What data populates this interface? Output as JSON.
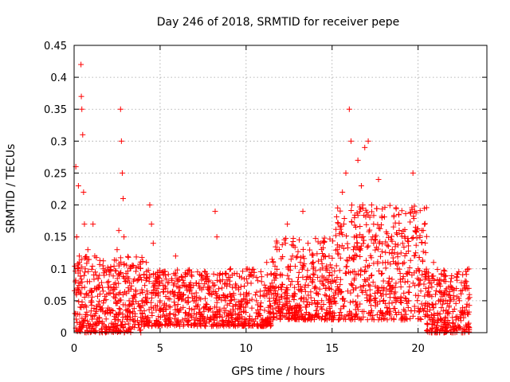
{
  "chart_data": {
    "type": "scatter",
    "title": "Day 246 of 2018, SRMTID for receiver pepe",
    "xlabel": "GPS time / hours",
    "ylabel": "SRMTID / TECUs",
    "xlim": [
      0,
      24
    ],
    "ylim": [
      0,
      0.45
    ],
    "xticks": [
      0,
      5,
      10,
      15,
      20
    ],
    "xtick_labels": [
      "0",
      "5",
      "10",
      "15",
      "20"
    ],
    "yticks": [
      0,
      0.05,
      0.1,
      0.15,
      0.2,
      0.25,
      0.3,
      0.35,
      0.4,
      0.45
    ],
    "ytick_labels": [
      "0",
      "0.05",
      "0.1",
      "0.15",
      "0.2",
      "0.25",
      "0.3",
      "0.35",
      "0.4",
      "0.45"
    ],
    "grid": true,
    "marker": "+",
    "series": [
      {
        "name": "SRMTID",
        "color": "#ff0000",
        "points": [
          [
            0.05,
            0.03
          ],
          [
            0.1,
            0.26
          ],
          [
            0.15,
            0.15
          ],
          [
            0.2,
            0.07
          ],
          [
            0.25,
            0.23
          ],
          [
            0.3,
            0.12
          ],
          [
            0.35,
            0.04
          ],
          [
            0.4,
            0.42
          ],
          [
            0.42,
            0.37
          ],
          [
            0.45,
            0.35
          ],
          [
            0.5,
            0.31
          ],
          [
            0.55,
            0.22
          ],
          [
            0.6,
            0.17
          ],
          [
            0.65,
            0.1
          ],
          [
            0.7,
            0.06
          ],
          [
            0.8,
            0.13
          ],
          [
            0.9,
            0.08
          ],
          [
            1.0,
            0.05
          ],
          [
            1.1,
            0.17
          ],
          [
            1.2,
            0.12
          ],
          [
            1.3,
            0.09
          ],
          [
            1.4,
            0.07
          ],
          [
            1.5,
            0.04
          ],
          [
            1.7,
            0.1
          ],
          [
            1.9,
            0.06
          ],
          [
            2.1,
            0.03
          ],
          [
            2.3,
            0.07
          ],
          [
            2.5,
            0.13
          ],
          [
            2.6,
            0.16
          ],
          [
            2.7,
            0.35
          ],
          [
            2.75,
            0.3
          ],
          [
            2.8,
            0.25
          ],
          [
            2.85,
            0.21
          ],
          [
            2.9,
            0.15
          ],
          [
            3.0,
            0.08
          ],
          [
            3.2,
            0.05
          ],
          [
            3.4,
            0.03
          ],
          [
            3.6,
            0.06
          ],
          [
            3.8,
            0.09
          ],
          [
            4.0,
            0.05
          ],
          [
            4.2,
            0.11
          ],
          [
            4.4,
            0.2
          ],
          [
            4.5,
            0.17
          ],
          [
            4.6,
            0.14
          ],
          [
            4.8,
            0.08
          ],
          [
            5.0,
            0.05
          ],
          [
            5.3,
            0.09
          ],
          [
            5.6,
            0.04
          ],
          [
            5.9,
            0.12
          ],
          [
            6.2,
            0.06
          ],
          [
            6.5,
            0.03
          ],
          [
            6.8,
            0.07
          ],
          [
            7.1,
            0.05
          ],
          [
            7.4,
            0.09
          ],
          [
            7.7,
            0.04
          ],
          [
            8.0,
            0.06
          ],
          [
            8.2,
            0.19
          ],
          [
            8.3,
            0.15
          ],
          [
            8.5,
            0.08
          ],
          [
            8.8,
            0.05
          ],
          [
            9.1,
            0.1
          ],
          [
            9.4,
            0.07
          ],
          [
            9.7,
            0.04
          ],
          [
            10.0,
            0.06
          ],
          [
            10.3,
            0.09
          ],
          [
            10.6,
            0.05
          ],
          [
            10.9,
            0.08
          ],
          [
            11.2,
            0.11
          ],
          [
            11.5,
            0.07
          ],
          [
            11.8,
            0.13
          ],
          [
            12.1,
            0.09
          ],
          [
            12.4,
            0.17
          ],
          [
            12.7,
            0.12
          ],
          [
            13.0,
            0.08
          ],
          [
            13.3,
            0.19
          ],
          [
            13.6,
            0.14
          ],
          [
            13.9,
            0.1
          ],
          [
            14.2,
            0.06
          ],
          [
            14.5,
            0.12
          ],
          [
            14.8,
            0.07
          ],
          [
            15.0,
            0.09
          ],
          [
            15.3,
            0.13
          ],
          [
            15.6,
            0.22
          ],
          [
            15.8,
            0.25
          ],
          [
            16.0,
            0.35
          ],
          [
            16.1,
            0.3
          ],
          [
            16.3,
            0.18
          ],
          [
            16.5,
            0.27
          ],
          [
            16.7,
            0.23
          ],
          [
            16.9,
            0.29
          ],
          [
            17.1,
            0.3
          ],
          [
            17.3,
            0.2
          ],
          [
            17.5,
            0.15
          ],
          [
            17.7,
            0.24
          ],
          [
            17.9,
            0.18
          ],
          [
            18.1,
            0.11
          ],
          [
            18.3,
            0.08
          ],
          [
            18.5,
            0.13
          ],
          [
            18.8,
            0.1
          ],
          [
            19.1,
            0.14
          ],
          [
            19.4,
            0.08
          ],
          [
            19.7,
            0.25
          ],
          [
            19.8,
            0.19
          ],
          [
            20.0,
            0.1
          ],
          [
            20.3,
            0.16
          ],
          [
            20.6,
            0.07
          ],
          [
            20.9,
            0.11
          ],
          [
            21.2,
            0.05
          ],
          [
            21.5,
            0.09
          ],
          [
            21.8,
            0.04
          ],
          [
            22.0,
            0.07
          ],
          [
            22.2,
            0.02
          ],
          [
            22.4,
            0.05
          ],
          [
            22.6,
            0.03
          ],
          [
            22.8,
            0.08
          ],
          [
            22.9,
            0.01
          ]
        ],
        "dense_regions": [
          {
            "x": [
              0.0,
              4.0
            ],
            "y": [
              0.0,
              0.12
            ],
            "n": 420
          },
          {
            "x": [
              4.0,
              11.5
            ],
            "y": [
              0.01,
              0.1
            ],
            "n": 700
          },
          {
            "x": [
              11.5,
              15.2
            ],
            "y": [
              0.02,
              0.15
            ],
            "n": 380
          },
          {
            "x": [
              15.2,
              20.5
            ],
            "y": [
              0.02,
              0.2
            ],
            "n": 520
          },
          {
            "x": [
              20.5,
              23.0
            ],
            "y": [
              0.0,
              0.1
            ],
            "n": 260
          }
        ]
      }
    ]
  }
}
